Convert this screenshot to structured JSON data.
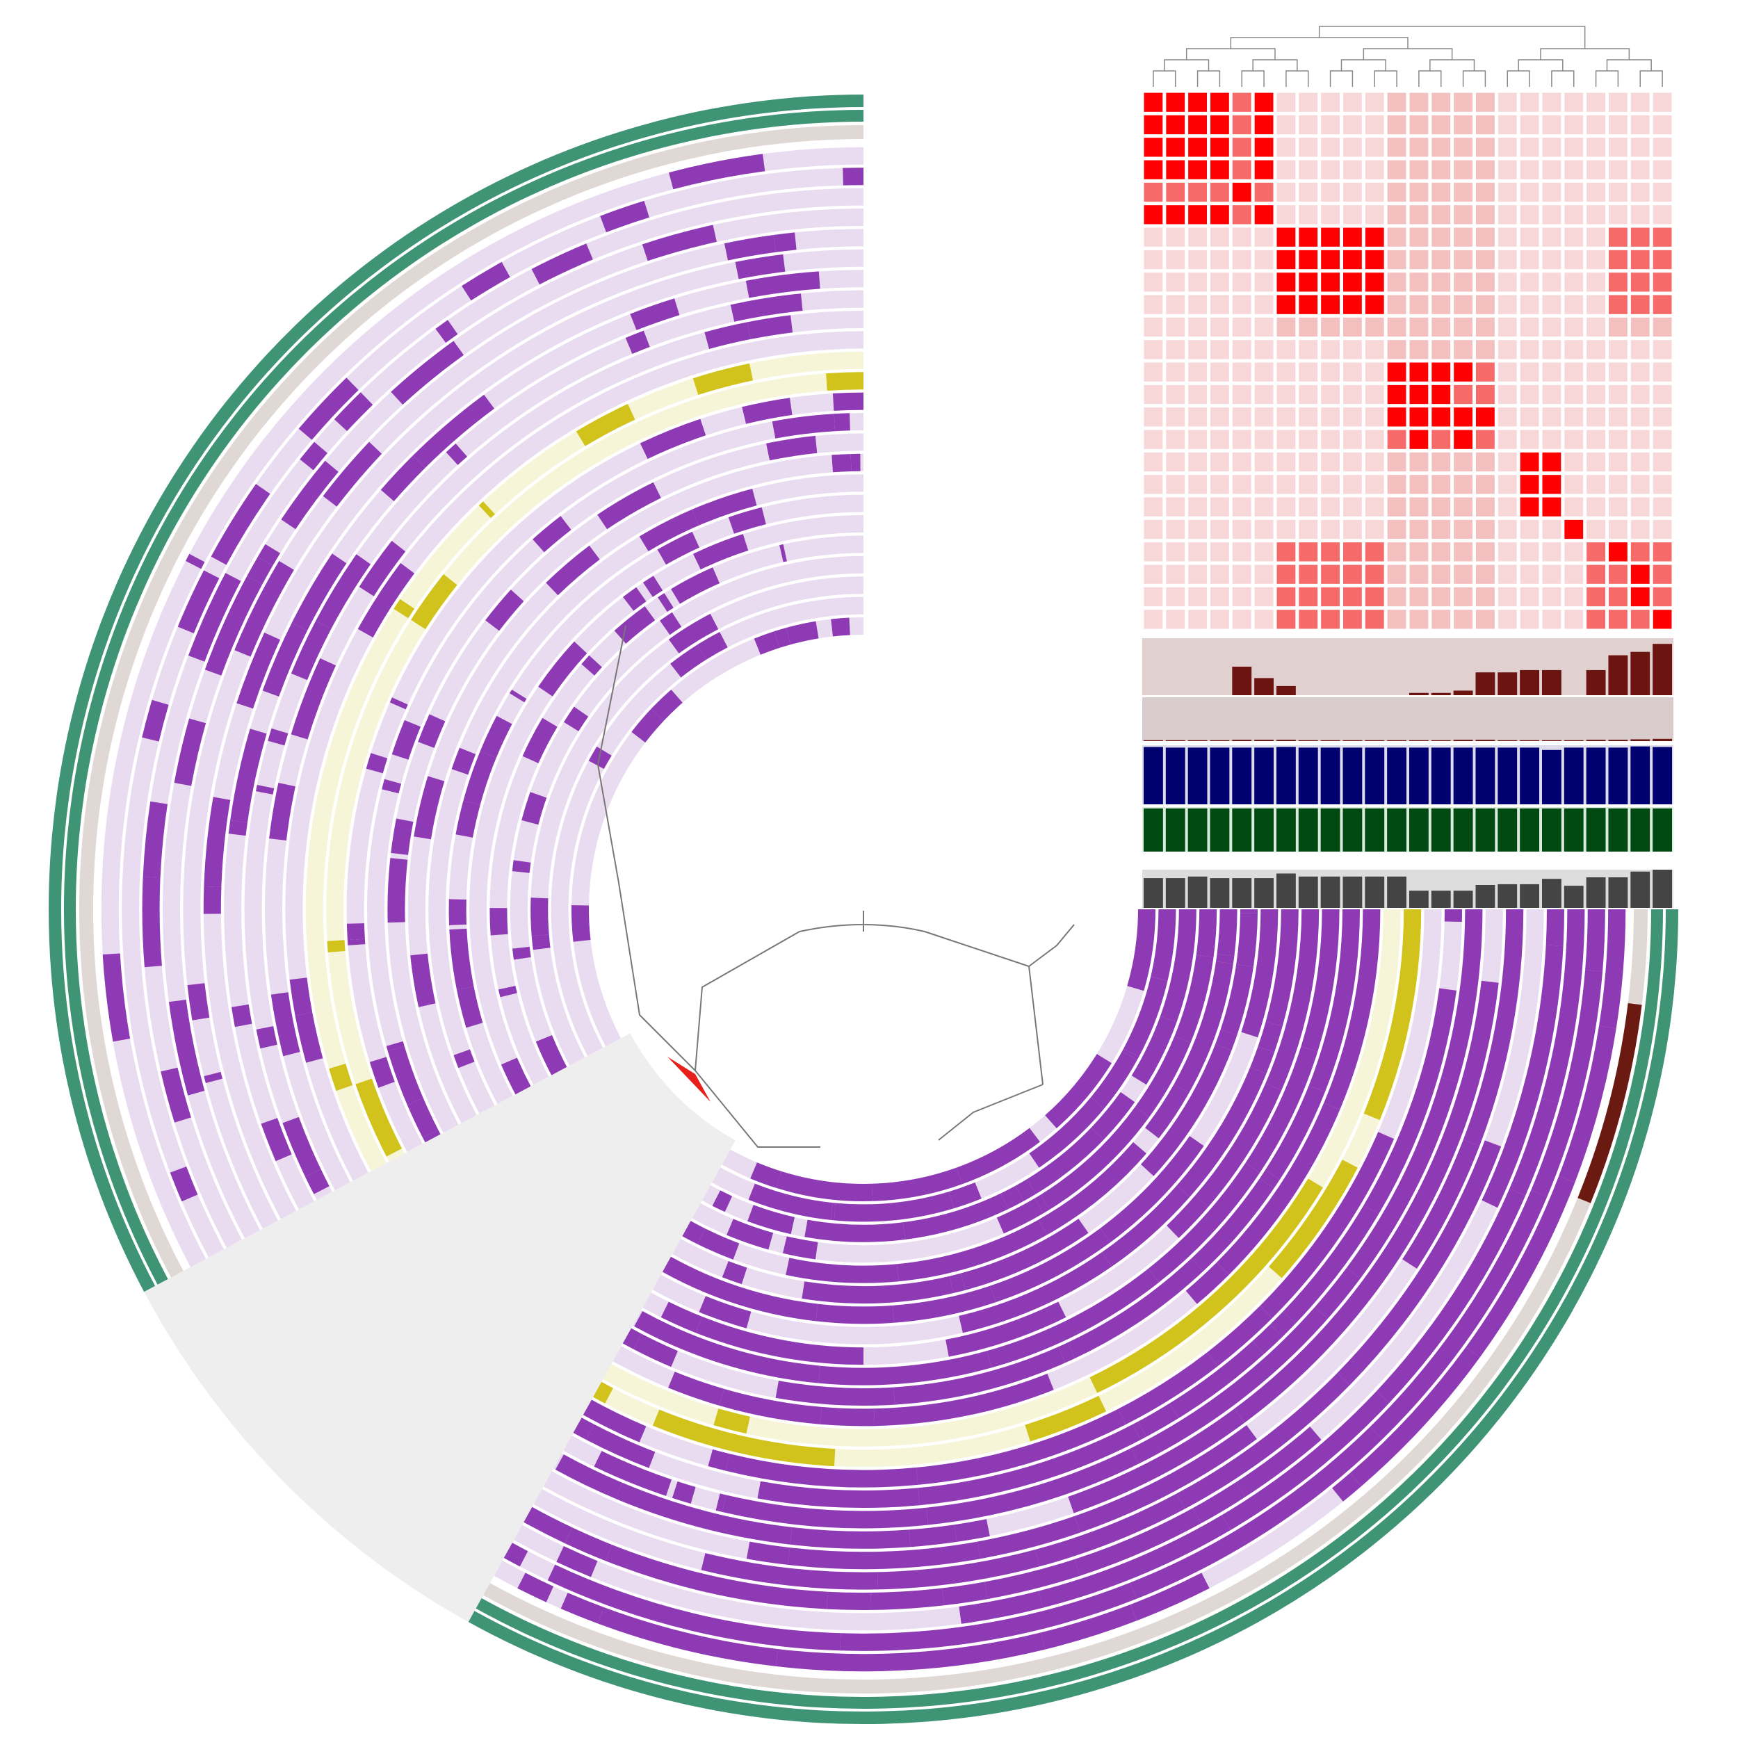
{
  "chart_data": {
    "type": "pangenome",
    "ring_colors": {
      "absent": "#eadcf0",
      "present": "#8e3ab4",
      "absent_highlight": "#f7f5d8",
      "present_highlight": "#d2c31c",
      "outer_layer": "#e0d8d4",
      "outer_layer_mark": "#6b1a12",
      "outer_ring": "#3e9474",
      "gap": "#eeeeee"
    },
    "heatmap": {
      "colors": [
        "#f7d7d7",
        "#f4bfbf",
        "#f76a6a",
        "#ff0000"
      ],
      "levels": [
        [
          4,
          4,
          4,
          4,
          3,
          4,
          1,
          1,
          1,
          1,
          1,
          2,
          2,
          2,
          2,
          2,
          1,
          1,
          1,
          1,
          1,
          1,
          1,
          1
        ],
        [
          4,
          4,
          4,
          4,
          3,
          4,
          1,
          1,
          1,
          1,
          1,
          2,
          2,
          2,
          2,
          2,
          1,
          1,
          1,
          1,
          1,
          1,
          1,
          1
        ],
        [
          4,
          4,
          4,
          4,
          3,
          4,
          1,
          1,
          1,
          1,
          1,
          2,
          2,
          2,
          2,
          2,
          1,
          1,
          1,
          1,
          1,
          1,
          1,
          1
        ],
        [
          4,
          4,
          4,
          4,
          3,
          4,
          1,
          1,
          1,
          1,
          1,
          2,
          2,
          2,
          2,
          2,
          1,
          1,
          1,
          1,
          1,
          1,
          1,
          1
        ],
        [
          3,
          3,
          3,
          3,
          4,
          3,
          1,
          1,
          1,
          1,
          1,
          2,
          2,
          2,
          2,
          2,
          1,
          1,
          1,
          1,
          1,
          1,
          1,
          1
        ],
        [
          4,
          4,
          4,
          4,
          3,
          4,
          1,
          1,
          1,
          1,
          1,
          2,
          2,
          2,
          2,
          2,
          1,
          1,
          1,
          1,
          1,
          1,
          1,
          1
        ],
        [
          1,
          1,
          1,
          1,
          1,
          1,
          4,
          4,
          4,
          4,
          4,
          2,
          2,
          2,
          2,
          2,
          1,
          1,
          1,
          1,
          1,
          3,
          3,
          3
        ],
        [
          1,
          1,
          1,
          1,
          1,
          1,
          4,
          4,
          4,
          4,
          4,
          2,
          2,
          2,
          2,
          2,
          1,
          1,
          1,
          1,
          1,
          3,
          3,
          3
        ],
        [
          1,
          1,
          1,
          1,
          1,
          1,
          4,
          4,
          4,
          4,
          4,
          2,
          2,
          2,
          2,
          2,
          1,
          1,
          1,
          1,
          1,
          3,
          3,
          3
        ],
        [
          1,
          1,
          1,
          1,
          1,
          1,
          4,
          4,
          4,
          4,
          4,
          2,
          2,
          2,
          2,
          2,
          1,
          1,
          1,
          1,
          1,
          3,
          3,
          3
        ],
        [
          1,
          1,
          1,
          1,
          1,
          1,
          2,
          2,
          2,
          2,
          2,
          2,
          2,
          2,
          2,
          2,
          1,
          1,
          1,
          1,
          1,
          2,
          2,
          2
        ],
        [
          1,
          1,
          1,
          1,
          1,
          1,
          1,
          1,
          1,
          1,
          1,
          2,
          2,
          2,
          2,
          2,
          1,
          1,
          1,
          1,
          1,
          1,
          1,
          1
        ],
        [
          1,
          1,
          1,
          1,
          1,
          1,
          1,
          1,
          1,
          1,
          1,
          4,
          4,
          4,
          4,
          3,
          1,
          1,
          1,
          1,
          1,
          1,
          1,
          1
        ],
        [
          1,
          1,
          1,
          1,
          1,
          1,
          1,
          1,
          1,
          1,
          1,
          4,
          4,
          4,
          3,
          3,
          1,
          1,
          1,
          1,
          1,
          1,
          1,
          1
        ],
        [
          1,
          1,
          1,
          1,
          1,
          1,
          1,
          1,
          1,
          1,
          1,
          4,
          4,
          4,
          4,
          4,
          1,
          1,
          1,
          1,
          1,
          1,
          1,
          1
        ],
        [
          1,
          1,
          1,
          1,
          1,
          1,
          1,
          1,
          1,
          1,
          1,
          3,
          4,
          3,
          4,
          3,
          1,
          1,
          1,
          1,
          1,
          1,
          1,
          1
        ],
        [
          1,
          1,
          1,
          1,
          1,
          1,
          1,
          1,
          1,
          1,
          1,
          2,
          2,
          2,
          2,
          2,
          1,
          4,
          4,
          1,
          1,
          1,
          1,
          1
        ],
        [
          1,
          1,
          1,
          1,
          1,
          1,
          1,
          1,
          1,
          1,
          1,
          2,
          2,
          2,
          2,
          2,
          1,
          4,
          4,
          1,
          1,
          1,
          1,
          1
        ],
        [
          1,
          1,
          1,
          1,
          1,
          1,
          1,
          1,
          1,
          1,
          1,
          2,
          2,
          2,
          2,
          2,
          1,
          4,
          4,
          1,
          1,
          1,
          1,
          1
        ],
        [
          1,
          1,
          1,
          1,
          1,
          1,
          1,
          1,
          1,
          1,
          1,
          2,
          2,
          2,
          2,
          2,
          1,
          1,
          1,
          4,
          1,
          1,
          1,
          1
        ],
        [
          1,
          1,
          1,
          1,
          1,
          1,
          3,
          3,
          3,
          3,
          3,
          2,
          2,
          2,
          2,
          2,
          1,
          1,
          1,
          1,
          3,
          4,
          3,
          3
        ],
        [
          1,
          1,
          1,
          1,
          1,
          1,
          3,
          3,
          3,
          3,
          3,
          2,
          2,
          2,
          2,
          2,
          1,
          1,
          1,
          1,
          3,
          3,
          4,
          3
        ],
        [
          1,
          1,
          1,
          1,
          1,
          1,
          3,
          3,
          3,
          3,
          3,
          2,
          2,
          2,
          2,
          2,
          1,
          1,
          1,
          1,
          3,
          3,
          4,
          3
        ],
        [
          1,
          1,
          1,
          1,
          1,
          1,
          3,
          3,
          3,
          3,
          3,
          2,
          2,
          2,
          2,
          2,
          1,
          1,
          1,
          1,
          3,
          3,
          3,
          4
        ]
      ]
    },
    "layers": [
      {
        "color": "#6b1410",
        "background": "#e0d0d0",
        "ylim": [
          0,
          50
        ],
        "values": [
          0,
          0,
          0,
          0,
          25,
          15,
          8,
          0,
          0,
          0,
          0,
          0,
          2,
          2,
          4,
          20,
          20,
          22,
          22,
          0,
          22,
          35,
          38,
          45
        ]
      },
      {
        "color": "#6b1410",
        "background": "#d8cccc",
        "ylim": [
          0,
          100
        ],
        "values": [
          2,
          2,
          2,
          2,
          3,
          3,
          3,
          2,
          2,
          2,
          2,
          2,
          2,
          2,
          3,
          3,
          2,
          2,
          2,
          2,
          3,
          3,
          4,
          5
        ]
      },
      {
        "color": "#000070",
        "background": "#dcdcec",
        "ylim": [
          0,
          100
        ],
        "values": [
          97,
          96,
          96,
          96,
          96,
          96,
          97,
          96,
          96,
          96,
          96,
          96,
          96,
          96,
          96,
          96,
          96,
          96,
          92,
          96,
          96,
          96,
          98,
          97
        ]
      },
      {
        "color": "#004a12",
        "background": "#dcecdc",
        "ylim": [
          0,
          100
        ],
        "values": [
          97,
          97,
          97,
          97,
          97,
          97,
          97,
          97,
          97,
          97,
          97,
          97,
          97,
          97,
          97,
          97,
          97,
          97,
          97,
          97,
          98,
          97,
          97,
          97
        ]
      },
      {
        "color": "#444444",
        "background": "#dddddd",
        "ylim": [
          0,
          100
        ],
        "values": [
          78,
          78,
          82,
          78,
          78,
          78,
          90,
          82,
          82,
          82,
          82,
          82,
          45,
          45,
          45,
          60,
          62,
          62,
          76,
          58,
          80,
          80,
          95,
          100
        ]
      }
    ]
  }
}
